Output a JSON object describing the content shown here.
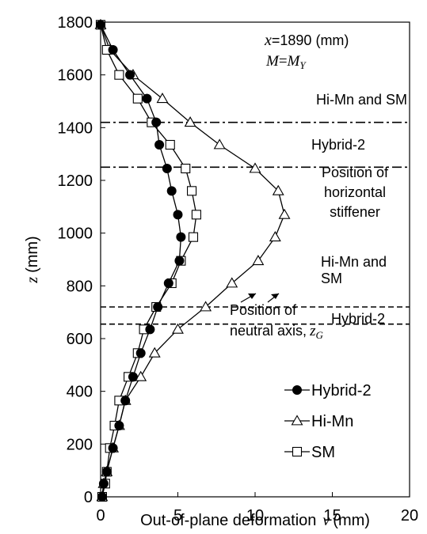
{
  "chart_data": {
    "type": "line",
    "xlabel": "Out-of-plane deformation",
    "xlabel_var": "v",
    "xlabel_unit": "(mm)",
    "ylabel_var": "z",
    "ylabel_unit": "(mm)",
    "xlim": [
      0,
      20
    ],
    "ylim": [
      0,
      1800
    ],
    "xticks": [
      "0",
      "5",
      "10",
      "15",
      "20"
    ],
    "yticks": [
      "0",
      "200",
      "400",
      "600",
      "800",
      "1000",
      "1200",
      "1400",
      "1600",
      "1800"
    ],
    "grid": false,
    "legend_position": "bottom-right",
    "annotations": {
      "x_var": "x",
      "x_value": "=1890 (mm)",
      "m_var": "M",
      "m_eq": "=",
      "m_rhs": "M",
      "m_sub": "Y",
      "line_himn_sm_top": "Hi-Mn and SM",
      "line_hybrid_top": "Hybrid-2",
      "stiffener_1": "Position of",
      "stiffener_2": "horizontal",
      "stiffener_3": "stiffener",
      "line_himn_sm_bottom_1": "Hi-Mn and",
      "line_himn_sm_bottom_2": "SM",
      "line_hybrid_bottom": "Hybrid-2",
      "neutral_1": "Position of",
      "neutral_2": "neutral axis,",
      "neutral_var": "z",
      "neutral_sub": "G"
    },
    "reference_lines": [
      {
        "z": 1420,
        "style": "dashdot"
      },
      {
        "z": 1250,
        "style": "dashdot"
      },
      {
        "z": 720,
        "style": "dashed"
      },
      {
        "z": 655,
        "style": "dashed"
      }
    ],
    "series": [
      {
        "name": "Hybrid-2",
        "marker": "filled-circle",
        "points": [
          [
            0,
            1790
          ],
          [
            0.8,
            1695
          ],
          [
            1.9,
            1600
          ],
          [
            3.0,
            1510
          ],
          [
            3.6,
            1420
          ],
          [
            3.8,
            1335
          ],
          [
            4.3,
            1245
          ],
          [
            4.6,
            1160
          ],
          [
            5.0,
            1070
          ],
          [
            5.2,
            985
          ],
          [
            5.1,
            895
          ],
          [
            4.4,
            810
          ],
          [
            3.7,
            720
          ],
          [
            3.2,
            635
          ],
          [
            2.6,
            545
          ],
          [
            2.1,
            455
          ],
          [
            1.6,
            365
          ],
          [
            1.2,
            270
          ],
          [
            0.8,
            185
          ],
          [
            0.4,
            95
          ],
          [
            0.2,
            50
          ],
          [
            0.1,
            0
          ]
        ]
      },
      {
        "name": "Hi-Mn",
        "marker": "open-triangle",
        "points": [
          [
            0,
            1790
          ],
          [
            0.6,
            1695
          ],
          [
            2.1,
            1600
          ],
          [
            4.0,
            1510
          ],
          [
            5.8,
            1420
          ],
          [
            7.7,
            1335
          ],
          [
            10.0,
            1245
          ],
          [
            11.5,
            1160
          ],
          [
            11.9,
            1070
          ],
          [
            11.3,
            985
          ],
          [
            10.2,
            895
          ],
          [
            8.5,
            810
          ],
          [
            6.8,
            720
          ],
          [
            5.0,
            635
          ],
          [
            3.5,
            545
          ],
          [
            2.6,
            455
          ],
          [
            1.6,
            365
          ],
          [
            1.2,
            270
          ],
          [
            0.8,
            185
          ],
          [
            0.4,
            95
          ],
          [
            0.2,
            50
          ],
          [
            0.1,
            0
          ]
        ]
      },
      {
        "name": "SM",
        "marker": "open-square",
        "points": [
          [
            0,
            1790
          ],
          [
            0.4,
            1695
          ],
          [
            1.2,
            1600
          ],
          [
            2.4,
            1510
          ],
          [
            3.3,
            1420
          ],
          [
            4.5,
            1335
          ],
          [
            5.5,
            1245
          ],
          [
            5.9,
            1160
          ],
          [
            6.2,
            1070
          ],
          [
            6.0,
            985
          ],
          [
            5.2,
            895
          ],
          [
            4.6,
            810
          ],
          [
            3.6,
            720
          ],
          [
            2.8,
            635
          ],
          [
            2.4,
            545
          ],
          [
            1.8,
            455
          ],
          [
            1.2,
            365
          ],
          [
            0.9,
            270
          ],
          [
            0.6,
            185
          ],
          [
            0.4,
            95
          ],
          [
            0.3,
            50
          ],
          [
            0.1,
            0
          ]
        ]
      }
    ]
  }
}
